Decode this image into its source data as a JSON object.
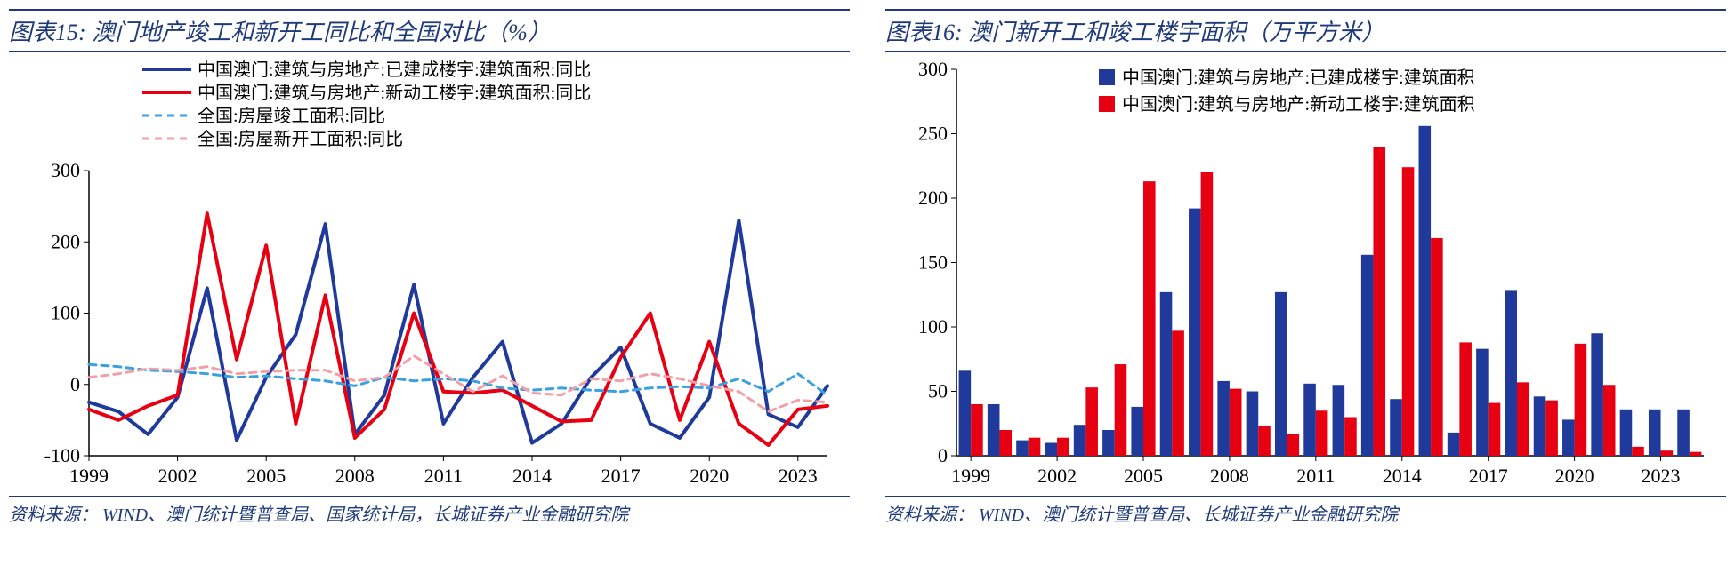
{
  "left": {
    "title_prefix": "图表15:",
    "title": "澳门地产竣工和新开工同比和全国对比（%）",
    "source_label": "资料来源：",
    "source": "WIND、澳门统计暨普查局、国家统计局，长城证券产业金融研究院",
    "chart": {
      "type": "line",
      "background_color": "#ffffff",
      "axis_color": "#000000",
      "tick_fontsize": 22,
      "legend_fontsize": 20,
      "ylim": [
        -100,
        300
      ],
      "ytick_step": 100,
      "yticks": [
        -100,
        0,
        100,
        200,
        300
      ],
      "x_start": 1999,
      "x_end": 2024,
      "xticks": [
        1999,
        2002,
        2005,
        2008,
        2011,
        2014,
        2017,
        2020,
        2023
      ],
      "series": [
        {
          "name": "中国澳门:建筑与房地产:已建成楼宇:建筑面积:同比",
          "color": "#1f3a9a",
          "dash": "none",
          "width": 4,
          "values": [
            -25,
            -38,
            -70,
            -18,
            135,
            -78,
            10,
            70,
            225,
            -70,
            -15,
            140,
            -55,
            10,
            60,
            -82,
            -55,
            10,
            52,
            -55,
            -75,
            -18,
            230,
            -42,
            -60,
            -2
          ]
        },
        {
          "name": "中国澳门:建筑与房地产:新动工楼宇:建筑面积:同比",
          "color": "#e60012",
          "dash": "none",
          "width": 4,
          "values": [
            -35,
            -50,
            -30,
            -15,
            240,
            35,
            195,
            -55,
            125,
            -75,
            -35,
            100,
            -10,
            -12,
            -8,
            -30,
            -52,
            -50,
            38,
            100,
            -50,
            60,
            -55,
            -85,
            -35,
            -30
          ]
        },
        {
          "name": "全国:房屋竣工面积:同比",
          "color": "#3aa0e0",
          "dash": "8,6",
          "width": 3,
          "values": [
            28,
            25,
            20,
            18,
            15,
            10,
            12,
            8,
            5,
            -2,
            10,
            5,
            8,
            5,
            -5,
            -8,
            -5,
            -8,
            -10,
            -5,
            -3,
            -5,
            8,
            -10,
            15,
            -15
          ]
        },
        {
          "name": "全国:房屋新开工面积:同比",
          "color": "#f2a0a8",
          "dash": "8,6",
          "width": 3,
          "values": [
            10,
            15,
            22,
            20,
            25,
            15,
            18,
            20,
            20,
            5,
            10,
            40,
            15,
            -10,
            12,
            -12,
            -15,
            8,
            5,
            15,
            8,
            -2,
            -10,
            -38,
            -22,
            -25
          ]
        }
      ]
    }
  },
  "right": {
    "title_prefix": "图表16:",
    "title": "澳门新开工和竣工楼宇面积（万平方米）",
    "source_label": "资料来源：",
    "source": "WIND、澳门统计暨普查局、长城证券产业金融研究院",
    "chart": {
      "type": "bar",
      "background_color": "#ffffff",
      "axis_color": "#000000",
      "tick_fontsize": 22,
      "legend_fontsize": 20,
      "ylim": [
        0,
        300
      ],
      "ytick_step": 50,
      "yticks": [
        0,
        50,
        100,
        150,
        200,
        250,
        300
      ],
      "x_start": 1999,
      "x_end": 2024,
      "xticks": [
        1999,
        2002,
        2005,
        2008,
        2011,
        2014,
        2017,
        2020,
        2023
      ],
      "bar_width": 0.42,
      "series": [
        {
          "name": "中国澳门:建筑与房地产:已建成楼宇:建筑面积",
          "color": "#1f3a9a",
          "values": [
            66,
            40,
            12,
            10,
            24,
            20,
            38,
            127,
            192,
            58,
            50,
            127,
            56,
            55,
            156,
            44,
            256,
            18,
            83,
            128,
            46,
            28,
            95,
            36,
            36,
            36
          ]
        },
        {
          "name": "中国澳门:建筑与房地产:新动工楼宇:建筑面积",
          "color": "#e60012",
          "values": [
            40,
            20,
            14,
            14,
            53,
            71,
            213,
            97,
            220,
            52,
            23,
            17,
            35,
            30,
            240,
            224,
            169,
            88,
            41,
            57,
            43,
            87,
            55,
            7,
            4,
            3
          ]
        }
      ]
    }
  }
}
